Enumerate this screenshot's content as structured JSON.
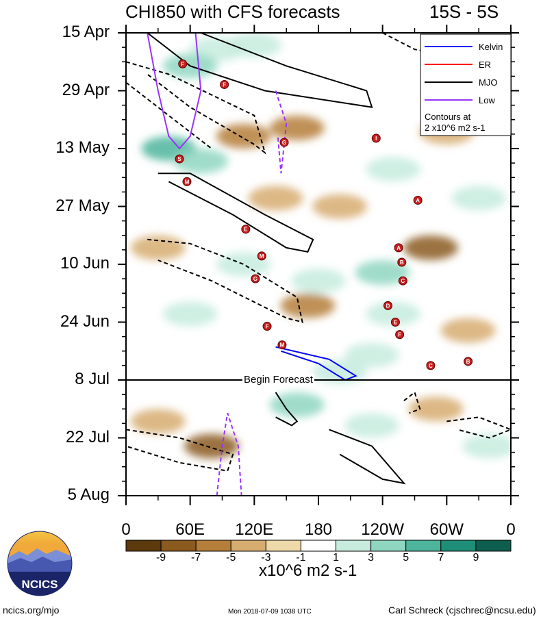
{
  "title": "CHI850 with CFS forecasts",
  "region": "15S - 5S",
  "chart_data": {
    "type": "heatmap",
    "title": "CHI850 with CFS forecasts",
    "subtitle": "15S - 5S",
    "y_ticks": [
      "15 Apr",
      "29 Apr",
      "13 May",
      "27 May",
      "10 Jun",
      "24 Jun",
      "8 Jul",
      "22 Jul",
      "5 Aug"
    ],
    "x_ticks": [
      "0",
      "60E",
      "120E",
      "180",
      "120W",
      "60W",
      "0"
    ],
    "xlim": [
      0,
      360
    ],
    "ylim": [
      0,
      112
    ],
    "forecast_start": "8 Jul",
    "forecast_label": "Begin Forecast",
    "legend": [
      {
        "name": "Kelvin",
        "color": "#0000ff",
        "dash": false
      },
      {
        "name": "ER",
        "color": "#ff0000",
        "dash": false
      },
      {
        "name": "MJO",
        "color": "#000000",
        "dash": false
      },
      {
        "name": "Low",
        "color": "#9933ff",
        "dash": false
      }
    ],
    "contour_note": [
      "Contours at",
      "2 x10^6 m2 s-1"
    ],
    "colorbar": {
      "labels": [
        "-9",
        "-7",
        "-5",
        "-3",
        "-1",
        "1",
        "3",
        "5",
        "7",
        "9"
      ],
      "colors": [
        "#5c3a0e",
        "#8a5a1e",
        "#b57e3a",
        "#d6ac70",
        "#eed9aa",
        "#ffffff",
        "#c7ecde",
        "#8fd6c1",
        "#4db59c",
        "#1f8e78",
        "#0d5e4e"
      ],
      "units": "x10^6 m2 s-1"
    },
    "anomaly_regions": [
      {
        "lon": 85,
        "day": 4,
        "value": 3
      },
      {
        "lon": 120,
        "day": 3,
        "value": 3
      },
      {
        "lon": 60,
        "day": 8,
        "value": 5
      },
      {
        "lon": 110,
        "day": 25,
        "value": -5
      },
      {
        "lon": 160,
        "day": 23,
        "value": -5
      },
      {
        "lon": 40,
        "day": 28,
        "value": 7
      },
      {
        "lon": 70,
        "day": 31,
        "value": 5
      },
      {
        "lon": 140,
        "day": 40,
        "value": -3
      },
      {
        "lon": 200,
        "day": 42,
        "value": -3
      },
      {
        "lon": 250,
        "day": 33,
        "value": 3
      },
      {
        "lon": 300,
        "day": 24,
        "value": -3
      },
      {
        "lon": 330,
        "day": 40,
        "value": 3
      },
      {
        "lon": 30,
        "day": 52,
        "value": -3
      },
      {
        "lon": 110,
        "day": 56,
        "value": 3
      },
      {
        "lon": 180,
        "day": 60,
        "value": 3
      },
      {
        "lon": 240,
        "day": 58,
        "value": 5
      },
      {
        "lon": 285,
        "day": 52,
        "value": -7
      },
      {
        "lon": 170,
        "day": 66,
        "value": -5
      },
      {
        "lon": 60,
        "day": 68,
        "value": 3
      },
      {
        "lon": 250,
        "day": 68,
        "value": 3
      },
      {
        "lon": 320,
        "day": 72,
        "value": -3
      },
      {
        "lon": 230,
        "day": 78,
        "value": 3
      },
      {
        "lon": 200,
        "day": 82,
        "value": 3
      },
      {
        "lon": 30,
        "day": 94,
        "value": -3
      },
      {
        "lon": 80,
        "day": 100,
        "value": -7
      },
      {
        "lon": 160,
        "day": 90,
        "value": 5
      },
      {
        "lon": 230,
        "day": 95,
        "value": 3
      },
      {
        "lon": 290,
        "day": 91,
        "value": -3
      },
      {
        "lon": 340,
        "day": 100,
        "value": 3
      }
    ],
    "contours": [
      {
        "wave": "MJO",
        "sign": "positive",
        "points": [
          [
            20,
            0
          ],
          [
            60,
            8
          ],
          [
            130,
            14
          ],
          [
            230,
            18
          ],
          [
            225,
            14
          ],
          [
            150,
            8
          ],
          [
            70,
            0
          ]
        ]
      },
      {
        "wave": "MJO",
        "sign": "negative",
        "points": [
          [
            240,
            0
          ],
          [
            270,
            4
          ],
          [
            290,
            5
          ],
          [
            300,
            3
          ]
        ]
      },
      {
        "wave": "MJO",
        "sign": "negative",
        "points": [
          [
            0,
            7
          ],
          [
            40,
            10
          ],
          [
            120,
            20
          ],
          [
            130,
            29
          ],
          [
            120,
            27
          ],
          [
            60,
            18
          ],
          [
            20,
            10
          ]
        ]
      },
      {
        "wave": "MJO",
        "sign": "negative",
        "points": [
          [
            0,
            12
          ],
          [
            40,
            20
          ],
          [
            80,
            28
          ]
        ]
      },
      {
        "wave": "MJO",
        "sign": "positive",
        "points": [
          [
            30,
            34
          ],
          [
            60,
            34
          ],
          [
            130,
            44
          ],
          [
            175,
            50
          ],
          [
            170,
            53
          ],
          [
            150,
            52
          ],
          [
            100,
            44
          ],
          [
            40,
            36
          ]
        ]
      },
      {
        "wave": "MJO",
        "sign": "negative",
        "points": [
          [
            20,
            50
          ],
          [
            60,
            51
          ],
          [
            110,
            56
          ],
          [
            160,
            64
          ],
          [
            165,
            70
          ],
          [
            150,
            69
          ],
          [
            80,
            60
          ],
          [
            30,
            55
          ]
        ]
      },
      {
        "wave": "Kelvin",
        "sign": "positive",
        "points": [
          [
            140,
            76
          ],
          [
            190,
            79
          ],
          [
            215,
            83
          ],
          [
            205,
            84
          ],
          [
            180,
            80
          ],
          [
            145,
            77
          ]
        ]
      },
      {
        "wave": "MJO",
        "sign": "positive",
        "points": [
          [
            140,
            87
          ],
          [
            150,
            91
          ],
          [
            160,
            94
          ],
          [
            155,
            95
          ],
          [
            140,
            93
          ]
        ]
      },
      {
        "wave": "MJO",
        "sign": "positive",
        "points": [
          [
            190,
            96
          ],
          [
            230,
            100
          ],
          [
            260,
            109
          ],
          [
            240,
            108
          ],
          [
            200,
            102
          ]
        ]
      },
      {
        "wave": "MJO",
        "sign": "negative",
        "points": [
          [
            0,
            96
          ],
          [
            50,
            98
          ],
          [
            100,
            102
          ],
          [
            95,
            106
          ],
          [
            50,
            104
          ],
          [
            0,
            100
          ]
        ]
      },
      {
        "wave": "MJO",
        "sign": "negative",
        "points": [
          [
            260,
            89
          ],
          [
            270,
            87
          ],
          [
            275,
            91
          ],
          [
            265,
            92
          ]
        ]
      },
      {
        "wave": "MJO",
        "sign": "negative",
        "points": [
          [
            300,
            94
          ],
          [
            330,
            93
          ],
          [
            360,
            96
          ],
          [
            340,
            98
          ],
          [
            310,
            96
          ]
        ]
      },
      {
        "wave": "Low",
        "sign": "positive",
        "points": [
          [
            20,
            0
          ],
          [
            30,
            14
          ],
          [
            40,
            25
          ],
          [
            50,
            28
          ],
          [
            60,
            25
          ],
          [
            70,
            14
          ],
          [
            65,
            0
          ]
        ]
      },
      {
        "wave": "Low",
        "sign": "negative",
        "points": [
          [
            140,
            14
          ],
          [
            150,
            22
          ],
          [
            145,
            34
          ],
          [
            142,
            25
          ]
        ]
      },
      {
        "wave": "Low",
        "sign": "negative",
        "points": [
          [
            85,
            112
          ],
          [
            90,
            100
          ],
          [
            95,
            92
          ],
          [
            105,
            100
          ],
          [
            108,
            112
          ]
        ]
      }
    ],
    "storms": [
      {
        "lon": 53,
        "day": 7.5,
        "label": "F"
      },
      {
        "lon": 92,
        "day": 12.5,
        "label": "F"
      },
      {
        "lon": 50,
        "day": 30.5,
        "label": "S"
      },
      {
        "lon": 57,
        "day": 36,
        "label": "M"
      },
      {
        "lon": 148,
        "day": 26.5,
        "label": "G"
      },
      {
        "lon": 234,
        "day": 25.5,
        "label": "I"
      },
      {
        "lon": 273,
        "day": 40.5,
        "label": "A"
      },
      {
        "lon": 112,
        "day": 47.5,
        "label": "E"
      },
      {
        "lon": 127,
        "day": 54,
        "label": "M"
      },
      {
        "lon": 121,
        "day": 59.5,
        "label": "G"
      },
      {
        "lon": 255,
        "day": 52,
        "label": "A"
      },
      {
        "lon": 258,
        "day": 55.5,
        "label": "B"
      },
      {
        "lon": 259,
        "day": 60,
        "label": "C"
      },
      {
        "lon": 245,
        "day": 66,
        "label": "D"
      },
      {
        "lon": 252,
        "day": 70,
        "label": "E"
      },
      {
        "lon": 256,
        "day": 73,
        "label": "F"
      },
      {
        "lon": 132,
        "day": 71,
        "label": "F"
      },
      {
        "lon": 146,
        "day": 75.5,
        "label": "M"
      },
      {
        "lon": 285,
        "day": 80.5,
        "label": "C"
      },
      {
        "lon": 320,
        "day": 79.5,
        "label": "B"
      }
    ]
  },
  "footer": {
    "logo_text": "NCICS",
    "site": "ncics.org/mjo",
    "timestamp": "Mon 2018-07-09 1038 UTC",
    "author": "Carl Schreck (cjschrec@ncsu.edu)"
  }
}
